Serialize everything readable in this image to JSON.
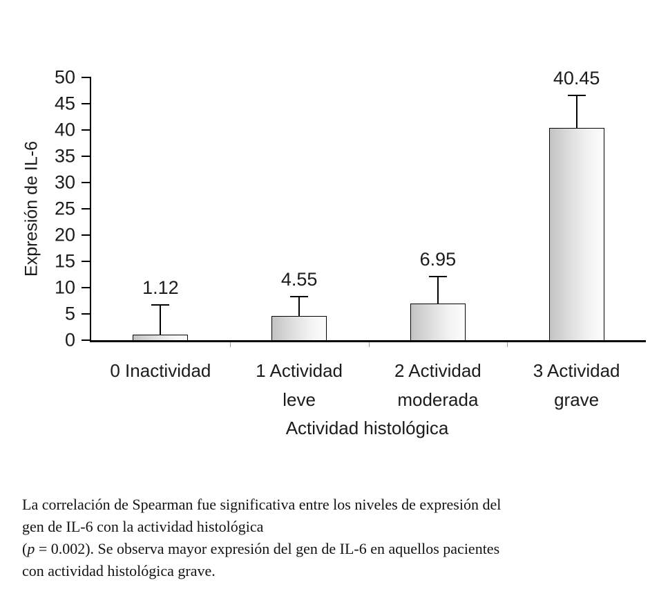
{
  "chart_data": {
    "type": "bar",
    "title": "",
    "categories": [
      "0 Inactividad",
      "1 Actividad\nleve",
      "2 Actividad\nmoderada",
      "3 Actividad\ngrave"
    ],
    "values": [
      1.12,
      4.55,
      6.95,
      40.45
    ],
    "data_labels": [
      "1.12",
      "4.55",
      "6.95",
      "40.45"
    ],
    "errors": [
      5.4,
      3.6,
      5.0,
      6.0
    ],
    "xlabel": "Actividad histológica",
    "ylabel": "Expresión de IL-6",
    "ylim": [
      0,
      50
    ],
    "yticks": [
      0,
      5,
      10,
      15,
      20,
      25,
      30,
      35,
      40,
      45,
      50
    ],
    "grid": false,
    "legend": false,
    "bar_fill_gradient": [
      "#c3c3c3",
      "#fdfdfd"
    ],
    "bar_border_color": "#000000",
    "axis_color": "#000000"
  },
  "caption": {
    "line1": "La correlación de Spearman fue significativa entre los niveles de expresión del",
    "line2": "gen de IL-6 con la actividad histológica",
    "line3_pre": "(",
    "line3_p": "p",
    "line3_post": " = 0.002). Se observa mayor expresión del gen de IL-6 en aquellos pacientes",
    "line4": "con actividad histológica grave."
  }
}
